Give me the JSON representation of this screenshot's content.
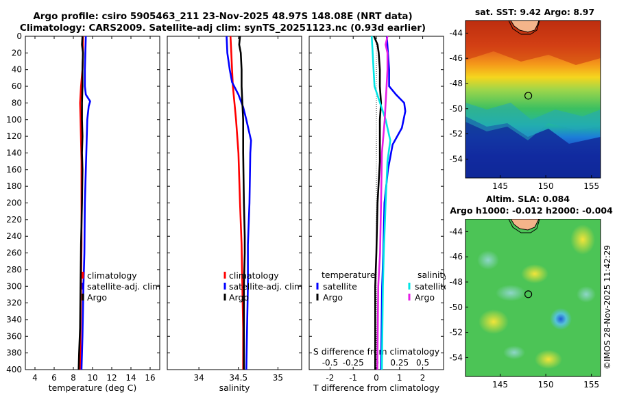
{
  "header": {
    "line1": "Argo profile: csiro 5905463_211 23-Nov-2025 48.97S 148.08E (NRT data)",
    "line2": "Climatology: CARS2009. Satellite-adj clim: synTS_20251123.nc (0.93d earlier)"
  },
  "maps": {
    "sst_title": "sat. SST: 9.42 Argo: 8.97",
    "sla_title_1": "Altim. SLA: 0.084",
    "sla_title_2": "Argo h1000: -0.012 h2000: -0.004",
    "lat_ticks": [
      "-44",
      "-46",
      "-48",
      "-50",
      "-52",
      "-54"
    ],
    "lon_ticks": [
      "145",
      "150",
      "155"
    ],
    "argo_marker": {
      "lon": 148.08,
      "lat": -48.97
    }
  },
  "stamp": "©IMOS 28-Nov-2025 11:42:29",
  "colors": {
    "climatology": "#ff0000",
    "satellite": "#0000ff",
    "argo": "#000000",
    "sal_satellite": "#00e5e5",
    "sal_argo": "#e61ee6"
  },
  "chart_data": [
    {
      "type": "line",
      "id": "temperature",
      "xlabel": "temperature (deg C)",
      "ylabel": "",
      "xlim": [
        3,
        17
      ],
      "ylim": [
        0,
        400
      ],
      "xticks": [
        "4",
        "6",
        "8",
        "10",
        "12",
        "14",
        "16"
      ],
      "yticks": [
        "0",
        "20",
        "40",
        "60",
        "80",
        "100",
        "120",
        "140",
        "160",
        "180",
        "200",
        "220",
        "240",
        "260",
        "280",
        "300",
        "320",
        "340",
        "360",
        "380",
        "400"
      ],
      "legend": [
        "climatology",
        "satellite-adj. clim",
        "Argo"
      ],
      "series": [
        {
          "name": "climatology",
          "color": "#ff0000",
          "depth": [
            0,
            20,
            40,
            60,
            80,
            100,
            150,
            200,
            250,
            300,
            350,
            400
          ],
          "values": [
            9.0,
            9.0,
            8.95,
            8.8,
            8.7,
            8.75,
            8.85,
            8.85,
            8.85,
            8.8,
            8.75,
            8.7
          ]
        },
        {
          "name": "satellite-adj. clim",
          "color": "#0000ff",
          "depth": [
            0,
            20,
            40,
            60,
            70,
            78,
            84,
            100,
            140,
            200,
            260,
            300,
            360,
            400
          ],
          "values": [
            9.3,
            9.25,
            9.2,
            9.2,
            9.3,
            9.75,
            9.6,
            9.45,
            9.35,
            9.2,
            9.15,
            9.05,
            8.95,
            8.85
          ]
        },
        {
          "name": "Argo",
          "color": "#000000",
          "depth": [
            0,
            10,
            20,
            40,
            60,
            80,
            100,
            120,
            140,
            160,
            200,
            250,
            300,
            350,
            380,
            400
          ],
          "values": [
            8.95,
            8.9,
            9.0,
            8.95,
            8.95,
            8.9,
            8.9,
            8.95,
            8.9,
            8.95,
            8.9,
            8.8,
            8.75,
            8.7,
            8.6,
            8.55
          ]
        }
      ]
    },
    {
      "type": "line",
      "id": "salinity",
      "xlabel": "salinity",
      "xlim": [
        33.6,
        35.3
      ],
      "ylim": [
        0,
        400
      ],
      "xticks": [
        "34",
        "34.5",
        "35"
      ],
      "legend": [
        "climatology",
        "satellite-adj. clim",
        "Argo"
      ],
      "series": [
        {
          "name": "climatology",
          "color": "#ff0000",
          "depth": [
            0,
            20,
            40,
            60,
            80,
            100,
            140,
            200,
            250,
            300,
            350,
            400
          ],
          "values": [
            34.4,
            34.41,
            34.42,
            34.43,
            34.45,
            34.47,
            34.5,
            34.52,
            34.54,
            34.55,
            34.56,
            34.56
          ]
        },
        {
          "name": "satellite-adj. clim",
          "color": "#0000ff",
          "depth": [
            0,
            20,
            40,
            55,
            70,
            85,
            100,
            125,
            140,
            200,
            250,
            300,
            350,
            400
          ],
          "values": [
            34.35,
            34.36,
            34.39,
            34.42,
            34.5,
            34.56,
            34.6,
            34.66,
            34.65,
            34.64,
            34.62,
            34.62,
            34.61,
            34.6
          ]
        },
        {
          "name": "Argo",
          "color": "#000000",
          "depth": [
            0,
            10,
            20,
            40,
            60,
            80,
            100,
            140,
            200,
            240,
            260,
            300,
            350,
            400
          ],
          "values": [
            34.52,
            34.51,
            34.53,
            34.54,
            34.54,
            34.55,
            34.56,
            34.56,
            34.57,
            34.58,
            34.58,
            34.57,
            34.57,
            34.57
          ]
        }
      ]
    },
    {
      "type": "line",
      "id": "difference",
      "xlabel": "T difference from climatology",
      "xlabel2": "S difference from climatology",
      "xlim": [
        -2.9,
        2.9
      ],
      "ylim": [
        0,
        400
      ],
      "xticks": [
        "-2",
        "-1",
        "0",
        "1",
        "2"
      ],
      "xticks2": [
        "-0.5",
        "-0.25",
        "0",
        "0.25",
        "0.5"
      ],
      "legend_temperature_title": "temperature",
      "legend_salinity_title": "salinity",
      "legend": [
        "satellite",
        "Argo",
        "satellite",
        "Argo"
      ],
      "series": [
        {
          "name": "temperature satellite",
          "color": "#0000ff",
          "depth": [
            0,
            20,
            40,
            60,
            70,
            80,
            90,
            110,
            130,
            160,
            200,
            260,
            300,
            400
          ],
          "values": [
            0.45,
            0.5,
            0.55,
            0.55,
            0.85,
            1.2,
            1.25,
            1.1,
            0.7,
            0.5,
            0.35,
            0.3,
            0.25,
            0.2
          ]
        },
        {
          "name": "temperature Argo",
          "color": "#000000",
          "depth": [
            0,
            10,
            20,
            40,
            60,
            80,
            100,
            150,
            200,
            260,
            300,
            400
          ],
          "values": [
            -0.1,
            0.05,
            0.1,
            0.15,
            0.15,
            0.2,
            0.15,
            0.15,
            0.05,
            0.0,
            -0.05,
            -0.05
          ]
        },
        {
          "name": "salinity satellite",
          "color": "#00e5e5",
          "depth": [
            0,
            20,
            40,
            60,
            80,
            100,
            125,
            150,
            200,
            260,
            300,
            400
          ],
          "values": [
            -0.05,
            -0.04,
            -0.03,
            -0.02,
            0.04,
            0.1,
            0.15,
            0.12,
            0.1,
            0.08,
            0.07,
            0.06
          ]
        },
        {
          "name": "salinity Argo",
          "color": "#e61ee6",
          "depth": [
            0,
            10,
            20,
            40,
            60,
            80,
            100,
            140,
            200,
            260,
            300,
            400
          ],
          "values": [
            0.12,
            0.1,
            0.12,
            0.12,
            0.11,
            0.1,
            0.09,
            0.06,
            0.05,
            0.04,
            0.02,
            0.01
          ]
        }
      ]
    }
  ]
}
